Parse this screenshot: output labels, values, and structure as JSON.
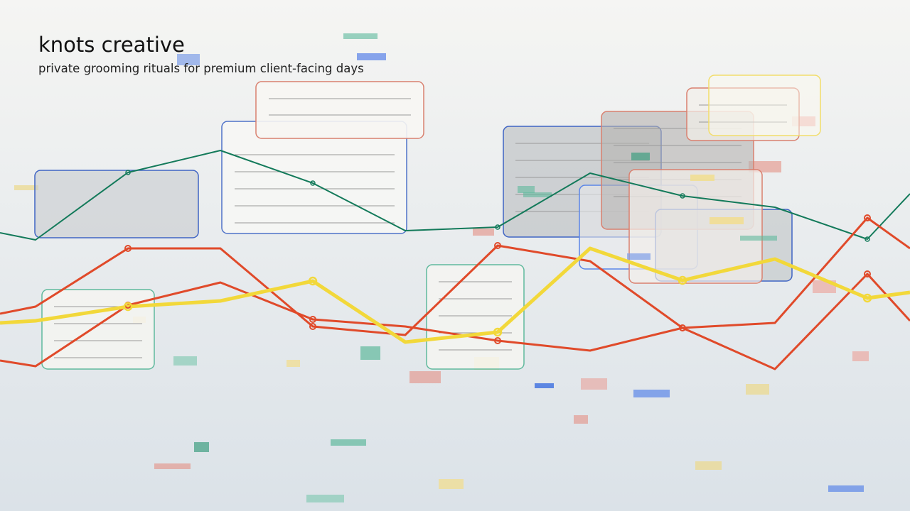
{
  "header": {
    "title": "knots creative",
    "subtitle": "private grooming rituals for premium client-facing days"
  }
}
